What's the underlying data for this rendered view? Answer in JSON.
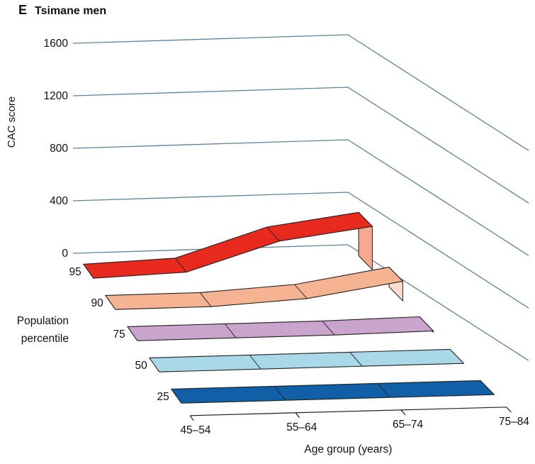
{
  "header": {
    "panel_letter": "E",
    "title": "Tsimane men"
  },
  "chart_data": {
    "type": "area",
    "variant": "3d-ribbon",
    "panel_letter": "E",
    "title": "Tsimane men",
    "xlabel": "Age group (years)",
    "ylabel": "CAC score",
    "zlabel": "Population percentile",
    "zlabel_lines": [
      "Population",
      "percentile"
    ],
    "categories": [
      "45–54",
      "55–64",
      "65–74",
      "75–84"
    ],
    "y_ticks": [
      1600,
      1200,
      800,
      400,
      0
    ],
    "ylim": [
      0,
      1600
    ],
    "grid": true,
    "legend_position": "left-depth-axis",
    "series": [
      {
        "name": "95",
        "percentile": 95,
        "values": [
          0,
          25,
          240,
          330
        ],
        "color": "#e82a1e",
        "cap_color": "#f6a98c"
      },
      {
        "name": "90",
        "percentile": 90,
        "values": [
          0,
          0,
          40,
          150
        ],
        "color": "#f6b392",
        "cap_color": "#fbdcca"
      },
      {
        "name": "75",
        "percentile": 75,
        "values": [
          0,
          0,
          0,
          10
        ],
        "color": "#c9a5ce",
        "cap_color": "#e0cbe2"
      },
      {
        "name": "50",
        "percentile": 50,
        "values": [
          0,
          0,
          0,
          0
        ],
        "color": "#a9d8e8",
        "cap_color": "#cfe9f2"
      },
      {
        "name": "25",
        "percentile": 25,
        "values": [
          0,
          0,
          0,
          0
        ],
        "color": "#1160a7",
        "cap_color": "#5b93c7"
      }
    ],
    "colors": {
      "gridline": "#5d8396",
      "outline": "#1f1f1f",
      "text": "#111111"
    }
  }
}
